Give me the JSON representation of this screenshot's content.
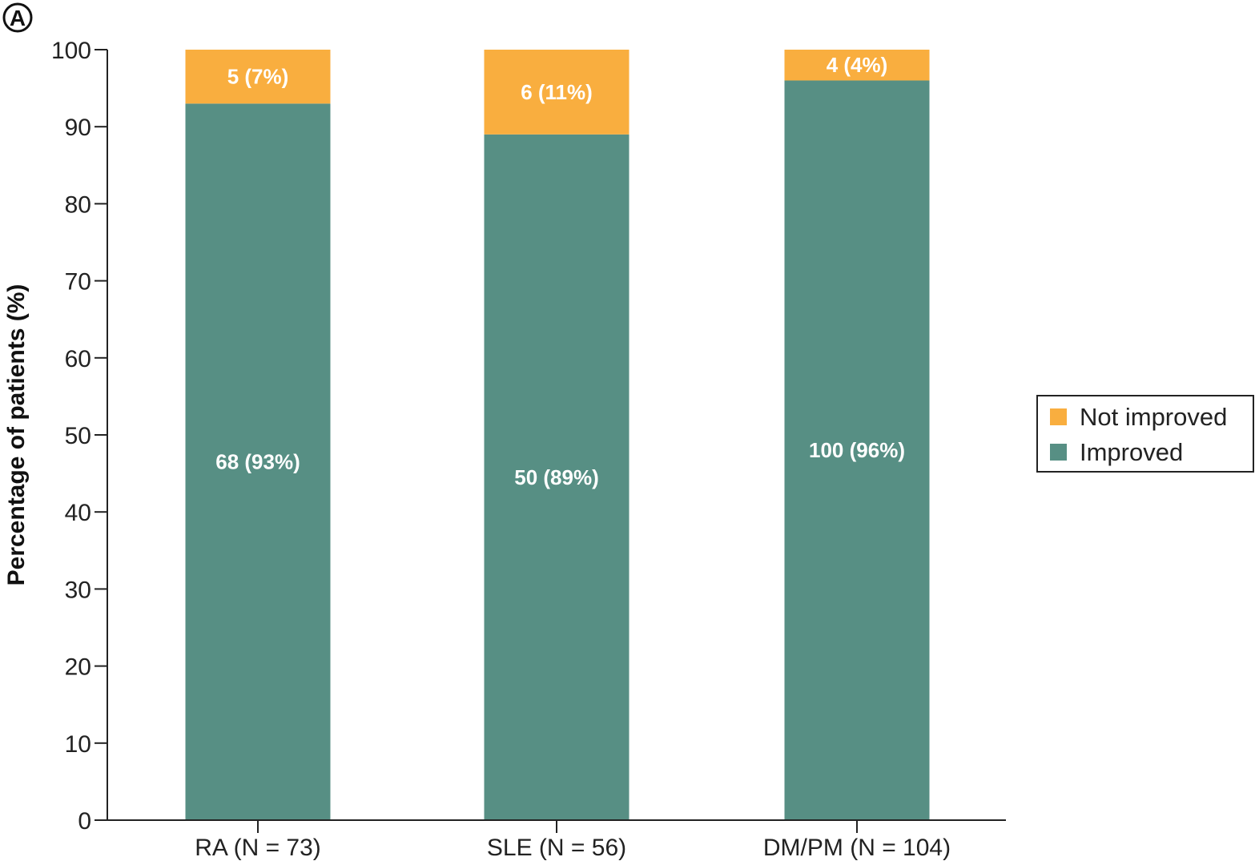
{
  "panel_label": "A",
  "chart_data": {
    "type": "bar",
    "stacked": true,
    "categories": [
      "RA (N = 73)",
      "SLE (N = 56)",
      "DM/PM (N = 104)"
    ],
    "series": [
      {
        "name": "Improved",
        "color": "#578f84",
        "values": [
          93,
          89,
          96
        ],
        "labels": [
          "68 (93%)",
          "50 (89%)",
          "100 (96%)"
        ]
      },
      {
        "name": "Not improved",
        "color": "#f9ae3f",
        "values": [
          7,
          11,
          4
        ],
        "labels": [
          "5 (7%)",
          "6 (11%)",
          "4 (4%)"
        ]
      }
    ],
    "ylabel": "Percentage of patients (%)",
    "xlabel": "",
    "ylim": [
      0,
      100
    ],
    "yticks": [
      0,
      10,
      20,
      30,
      40,
      50,
      60,
      70,
      80,
      90,
      100
    ],
    "grid": false,
    "legend": {
      "placement": "right",
      "entries": [
        "Not improved",
        "Improved"
      ]
    }
  }
}
